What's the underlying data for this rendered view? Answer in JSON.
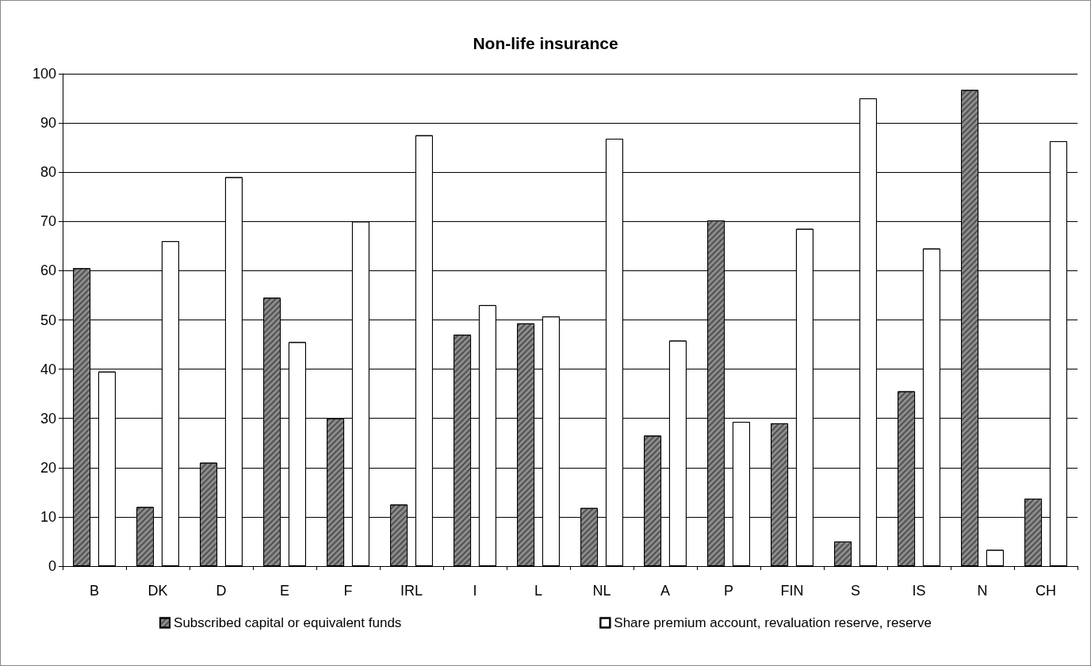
{
  "chart_data": {
    "type": "bar",
    "title": "Non-life insurance",
    "categories": [
      "B",
      "DK",
      "D",
      "E",
      "F",
      "IRL",
      "I",
      "L",
      "NL",
      "A",
      "P",
      "FIN",
      "S",
      "IS",
      "N",
      "CH"
    ],
    "series": [
      {
        "name": "Subscribed capital or equivalent funds",
        "color": "#8c8c8c",
        "values": [
          60.5,
          12,
          21,
          54.5,
          30,
          12.5,
          47,
          49.3,
          11.8,
          26.5,
          70.2,
          29,
          5,
          35.5,
          96.7,
          13.7
        ]
      },
      {
        "name": "Share premium account, revaluation reserve, reserve",
        "color": "#ffffff",
        "values": [
          39.5,
          66,
          79,
          45.5,
          70,
          87.5,
          53,
          50.7,
          86.8,
          45.8,
          29.3,
          68.5,
          95,
          64.5,
          3.3,
          86.3
        ]
      }
    ],
    "ylim": [
      0,
      100
    ],
    "yticks": [
      0,
      10,
      20,
      30,
      40,
      50,
      60,
      70,
      80,
      90,
      100
    ],
    "grid": "y",
    "legend": "bottom"
  }
}
